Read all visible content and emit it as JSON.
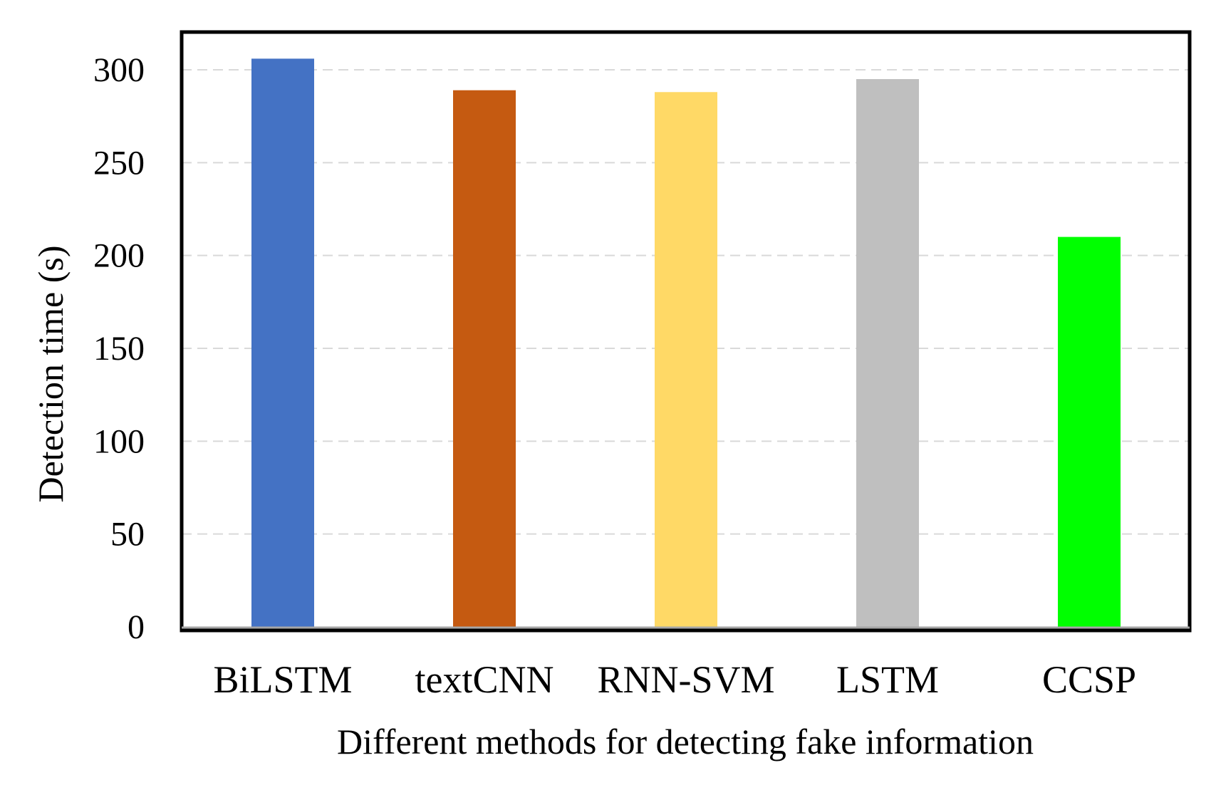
{
  "chart_data": {
    "type": "bar",
    "title": "",
    "xlabel": "Different methods for detecting fake information",
    "ylabel": "Detection time (s)",
    "categories": [
      "BiLSTM",
      "textCNN",
      "RNN-SVM",
      "LSTM",
      "CCSP"
    ],
    "values": [
      306,
      289,
      288,
      295,
      210
    ],
    "colors": [
      "#4472C4",
      "#C55A11",
      "#FFD966",
      "#BFBFBF",
      "#00FF00"
    ],
    "ylim": [
      0,
      300
    ],
    "yticks": [
      "0",
      "50",
      "100",
      "150",
      "200",
      "250",
      "300"
    ],
    "grid": true,
    "grid_style": "dashed",
    "legend": "none"
  }
}
